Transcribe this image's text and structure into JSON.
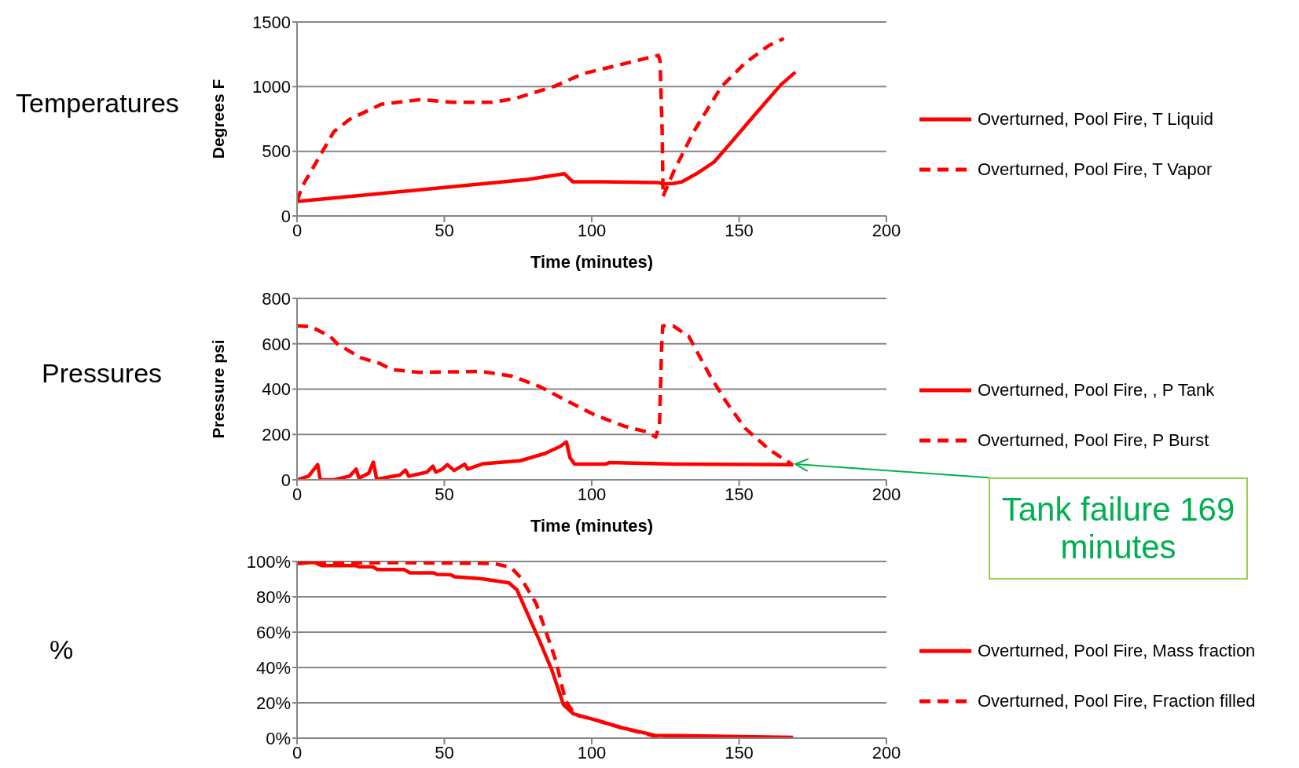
{
  "chart_data": [
    {
      "type": "line",
      "title": "Temperatures",
      "xlabel": "Time (minutes)",
      "ylabel": "Degrees F",
      "xlim": [
        0,
        200
      ],
      "xticks": [
        0,
        50,
        100,
        150,
        200
      ],
      "ylim": [
        0,
        1500
      ],
      "yticks": [
        0,
        500,
        1000,
        1500
      ],
      "grid": "y",
      "legend": "right",
      "series": [
        {
          "name": "Overturned, Pool Fire, T Liquid",
          "color": "#ff0000",
          "line_style": "solid",
          "x": [
            0,
            78.3,
            90.7,
            93.6,
            103.8,
            122.6,
            124.6,
            127.9,
            130.6,
            136,
            141.4,
            146.7,
            156.1,
            164.2,
            169.1
          ],
          "values": [
            112,
            282,
            327,
            264,
            264,
            258,
            248,
            252,
            264,
            333,
            415,
            552,
            803,
            1015,
            1112
          ]
        },
        {
          "name": "Overturned, Pool Fire, T Vapor",
          "color": "#ff0000",
          "line_style": "dashed",
          "x": [
            0,
            1.7,
            7.1,
            12.5,
            17.9,
            28.6,
            42,
            52.8,
            66.2,
            74.2,
            87.7,
            97,
            109.1,
            122.6,
            123.2,
            123.9,
            124.2,
            127.9,
            134.6,
            144,
            152,
            160.1,
            165.2
          ],
          "values": [
            112,
            227,
            439,
            652,
            748,
            864,
            900,
            879,
            879,
            909,
            1006,
            1100,
            1167,
            1242,
            1197,
            652,
            152,
            348,
            652,
            1000,
            1182,
            1318,
            1373
          ]
        }
      ]
    },
    {
      "type": "line",
      "title": "Pressures",
      "xlabel": "Time (minutes)",
      "ylabel": "Pressure psi",
      "xlim": [
        0,
        200
      ],
      "xticks": [
        0,
        50,
        100,
        150,
        200
      ],
      "ylim": [
        0,
        800
      ],
      "yticks": [
        0,
        200,
        400,
        600,
        800
      ],
      "grid": "y",
      "legend": "right",
      "annotations": [
        {
          "text": "Tank failure 169 minutes",
          "x": 169,
          "y": 70
        }
      ],
      "series": [
        {
          "name": "Overturned, Pool Fire, , P Tank",
          "color": "#ff0000",
          "line_style": "solid",
          "x": [
            0,
            3.9,
            7,
            7.9,
            12.5,
            17.8,
            20.1,
            21,
            24.3,
            25.9,
            27,
            34.9,
            36.8,
            37.9,
            44.1,
            46.1,
            47.1,
            49.3,
            51,
            53.3,
            56.9,
            57.9,
            63.2,
            75.7,
            84.1,
            89.3,
            91.4,
            92.6,
            94.2,
            104.6,
            105.9,
            128.3,
            168.4
          ],
          "values": [
            0,
            16,
            67,
            0,
            0,
            16,
            47,
            7,
            29,
            78,
            3,
            21,
            43,
            16,
            34,
            60,
            34,
            47,
            67,
            41,
            69,
            47,
            71,
            84,
            116,
            147,
            167,
            98,
            69,
            69,
            76,
            69,
            67
          ]
        },
        {
          "name": "Overturned, Pool Fire, P Burst",
          "color": "#ff0000",
          "line_style": "dashed",
          "x": [
            0,
            4.6,
            11.2,
            13.8,
            21.7,
            28.3,
            32.2,
            41.4,
            62.5,
            73,
            82.2,
            92.8,
            100.7,
            111.2,
            119.1,
            121.7,
            123,
            123.7,
            124.1,
            127.6,
            132.9,
            140.1,
            145.4,
            152,
            160.3,
            167.8
          ],
          "values": [
            679,
            676,
            633,
            598,
            538,
            512,
            486,
            474,
            478,
            457,
            412,
            340,
            288,
            236,
            210,
            188,
            245,
            581,
            679,
            679,
            633,
            460,
            348,
            228,
            133,
            69
          ]
        }
      ]
    },
    {
      "type": "line",
      "ylabel": "%",
      "xlim": [
        0,
        200
      ],
      "xticks": [
        0,
        50,
        100,
        150,
        200
      ],
      "ylim": [
        0,
        100
      ],
      "yticks": [
        {
          "value": 0,
          "label": "0%"
        },
        {
          "value": 20,
          "label": "20%"
        },
        {
          "value": 40,
          "label": "40%"
        },
        {
          "value": 60,
          "label": "60%"
        },
        {
          "value": 80,
          "label": "80%"
        },
        {
          "value": 100,
          "label": "100%"
        }
      ],
      "grid": "y",
      "legend": "right",
      "series": [
        {
          "name": "Overturned, Pool Fire, Mass fraction",
          "color": "#ff0000",
          "line_style": "solid",
          "x": [
            0,
            5.9,
            8.3,
            19.8,
            21.1,
            25.7,
            27.3,
            36.3,
            38.3,
            46.2,
            47.5,
            52.1,
            53.5,
            57.4,
            62.7,
            71.9,
            74.6,
            82.5,
            86.5,
            90.4,
            93.8,
            102.3,
            110.2,
            121.5,
            128.7,
            168.3
          ],
          "values": [
            98.9,
            99.5,
            97.7,
            97.7,
            97,
            97,
            95.4,
            95.4,
            93.6,
            93.6,
            92.7,
            92.5,
            91.3,
            90.9,
            90.2,
            87.9,
            84,
            54.3,
            38.4,
            19,
            13.7,
            9.8,
            5.9,
            1.6,
            1.4,
            0.5
          ]
        },
        {
          "name": "Overturned, Pool Fire, Fraction filled",
          "color": "#ff0000",
          "line_style": "dashed",
          "x": [
            0,
            5.9,
            23.1,
            36.3,
            66.7,
            72.6,
            75.9,
            81.2,
            87.8,
            91.1,
            94.4,
            102.3,
            110.2,
            121.5,
            126.1,
            168.3
          ],
          "values": [
            98.9,
            99.5,
            99.3,
            99.3,
            98.9,
            96.6,
            90.9,
            76,
            44,
            21.2,
            13.2,
            9.8,
            5.9,
            1.1,
            0.2,
            0
          ]
        }
      ]
    }
  ]
}
